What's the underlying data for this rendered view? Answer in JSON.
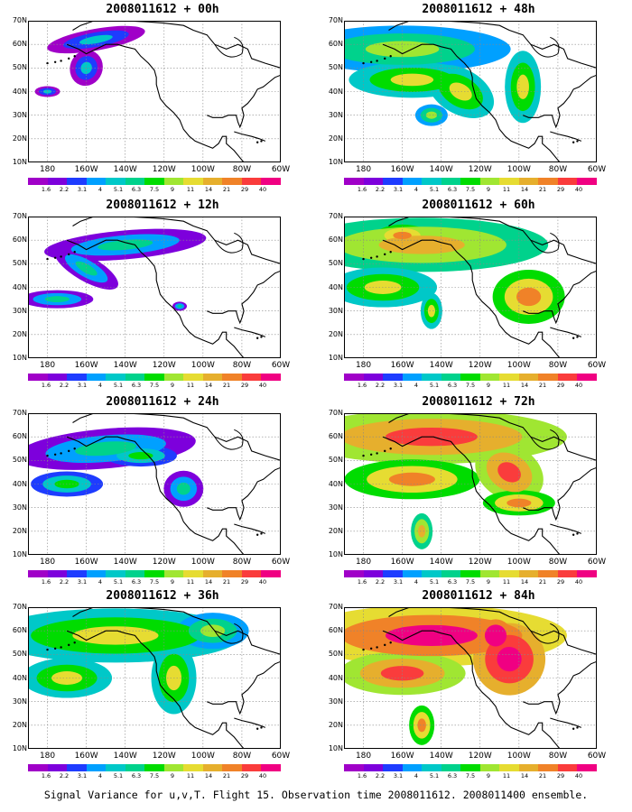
{
  "caption": "Signal Variance for u,v,T. Flight 15. Observation time 2008011612. 2008011400 ensemble.",
  "lat_labels": [
    "70N",
    "60N",
    "50N",
    "40N",
    "30N",
    "20N",
    "10N"
  ],
  "lon_labels": [
    "180",
    "160W",
    "140W",
    "120W",
    "100W",
    "80W",
    "60W"
  ],
  "colorbar": {
    "colors": [
      "#a000c8",
      "#7d00dc",
      "#1e3cff",
      "#00a0ff",
      "#00c8c8",
      "#00d28c",
      "#00dc00",
      "#a0e632",
      "#e6dc32",
      "#e6af2d",
      "#f08228",
      "#fa3c3c",
      "#f00082"
    ],
    "labels": [
      "1.6",
      "2.2",
      "3.1",
      "4",
      "5.1",
      "6.3",
      "7.5",
      "9",
      "11",
      "14",
      "21",
      "29",
      "40"
    ]
  },
  "panels": [
    {
      "title": "2008011612 + 00h",
      "level": 0
    },
    {
      "title": "2008011612 + 48h",
      "level": 3
    },
    {
      "title": "2008011612 + 12h",
      "level": 1
    },
    {
      "title": "2008011612 + 60h",
      "level": 4
    },
    {
      "title": "2008011612 + 24h",
      "level": 1
    },
    {
      "title": "2008011612 + 72h",
      "level": 5
    },
    {
      "title": "2008011612 + 36h",
      "level": 3
    },
    {
      "title": "2008011612 + 84h",
      "level": 6
    }
  ]
}
